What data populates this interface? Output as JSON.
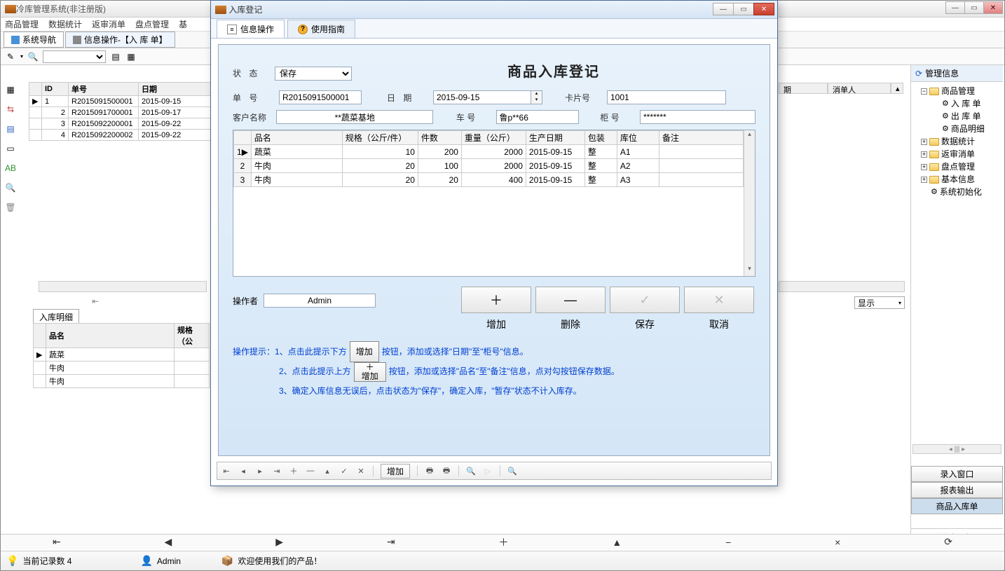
{
  "main": {
    "title": "冷库管理系统(非注册版)",
    "menus": [
      "商品管理",
      "数据统计",
      "返审消单",
      "盘点管理",
      "基"
    ],
    "tab_nav": "系统导航",
    "tab_info": "信息操作-【入 库 单】",
    "show_dropdown": "显示"
  },
  "bg_table": {
    "headers": [
      "ID",
      "单号",
      "日期"
    ],
    "rows": [
      [
        "1",
        "R2015091500001",
        "2015-09-15"
      ],
      [
        "2",
        "R2015091700001",
        "2015-09-17"
      ],
      [
        "3",
        "R2015092200001",
        "2015-09-22"
      ],
      [
        "4",
        "R2015092200002",
        "2015-09-22"
      ]
    ]
  },
  "bg_headers_right": [
    "期",
    "消单人"
  ],
  "bg_detail": {
    "tab": "入库明细",
    "headers": [
      "品名",
      "规格（公"
    ],
    "rows": [
      "蔬菜",
      "牛肉",
      "牛肉"
    ]
  },
  "dialog": {
    "title": "入库登记",
    "tab_info": "信息操作",
    "tab_help": "使用指南",
    "heading": "商品入库登记",
    "labels": {
      "status": "状    态",
      "doc_no": "单    号",
      "date": "日    期",
      "card_no": "卡片号",
      "customer": "客户名称",
      "vehicle": "车   号",
      "cabinet": "柜   号",
      "operator": "操作者"
    },
    "values": {
      "status": "保存",
      "doc_no": "R2015091500001",
      "date": "2015-09-15",
      "card_no": "1001",
      "customer": "**蔬菜基地",
      "vehicle": "鲁p**66",
      "cabinet": "*******",
      "operator": "Admin"
    },
    "table": {
      "headers": [
        "",
        "品名",
        "规格（公斤/件）",
        "件数",
        "重量（公斤）",
        "生产日期",
        "包装",
        "库位",
        "备注"
      ],
      "rows": [
        [
          "1",
          "蔬菜",
          "10",
          "200",
          "2000",
          "2015-09-15",
          "整",
          "A1",
          ""
        ],
        [
          "2",
          "牛肉",
          "20",
          "100",
          "2000",
          "2015-09-15",
          "整",
          "A2",
          ""
        ],
        [
          "3",
          "牛肉",
          "20",
          "20",
          "400",
          "2015-09-15",
          "整",
          "A3",
          ""
        ]
      ]
    },
    "actions": {
      "add": "增加",
      "delete": "删除",
      "save": "保存",
      "cancel": "取消"
    },
    "tips": {
      "prefix": "操作提示：",
      "line1a": "1、点击此提示下方",
      "line1_btn": "增加",
      "line1b": "按钮，添加或选择\"日期\"至\"柜号\"信息。",
      "line2a": "2、点击此提示上方",
      "line2_btn_top": "＋",
      "line2_btn_bot": "增加",
      "line2b": "按钮，添加或选择\"品名\"至\"备注\"信息，点对勾按钮保存数据。",
      "line3": "3、确定入库信息无误后，点击状态为\"保存\"，确定入库，\"暂存\"状态不计入库存。"
    },
    "statusbar_add": "增加"
  },
  "right": {
    "header": "管理信息",
    "items": [
      {
        "label": "商品管理",
        "level": 1,
        "exp": "−",
        "folder": true
      },
      {
        "label": "入 库 单",
        "level": 2,
        "gear": true,
        "cut": true
      },
      {
        "label": "出 库 单",
        "level": 2,
        "gear": true,
        "cut": true
      },
      {
        "label": "商品明细",
        "level": 2,
        "gear": true,
        "cut": true
      },
      {
        "label": "数据统计",
        "level": 1,
        "exp": "+",
        "folder": true
      },
      {
        "label": "返审消单",
        "level": 1,
        "exp": "+",
        "folder": true
      },
      {
        "label": "盘点管理",
        "level": 1,
        "exp": "+",
        "folder": true
      },
      {
        "label": "基本信息",
        "level": 1,
        "exp": "+",
        "folder": true
      },
      {
        "label": "系统初始化",
        "level": 1,
        "gear": true
      }
    ],
    "btn1": "录入窗口",
    "btn2": "报表输出",
    "btn3": "商品入库单",
    "extra": "信息分析"
  },
  "bottom_nav": [
    "⇤",
    "◀",
    "▶",
    "⇥",
    "＋",
    "▲",
    "−",
    "×",
    "⟳"
  ],
  "status": {
    "records": "当前记录数 4",
    "user": "Admin",
    "welcome": "欢迎使用我们的产品！"
  },
  "colors": {
    "dialog_bg_top": "#e8f2fb",
    "dialog_bg_bot": "#d4e6f7",
    "tip_text": "#0040d0"
  }
}
